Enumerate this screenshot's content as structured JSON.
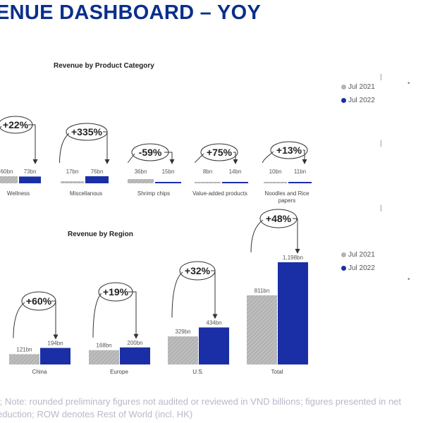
{
  "page": {
    "title": "ENUE DASHBOARD – YOY",
    "footnote_lines": [
      "t; Note: rounded preliminary figures not audited or reviewed in VND billions; figures presented in net",
      "eduction; ROW denotes Rest of World (incl. HK)"
    ]
  },
  "colors": {
    "jul2021": "#b3b3b3",
    "jul2022": "#1a2fa6",
    "title": "#0a2f8c"
  },
  "legend": [
    {
      "label": "Jul 2021",
      "color": "#b3b3b3"
    },
    {
      "label": "Jul 2022",
      "color": "#1a2fa6"
    }
  ],
  "chart_data": [
    {
      "type": "bar",
      "title": "Revenue by Product Category",
      "categories": [
        "Wellness",
        "Miscellanous",
        "Shrimp chips",
        "Value-added products",
        "Noodles and Rice papers"
      ],
      "series": [
        {
          "name": "Jul 2021",
          "values": [
            60,
            17,
            36,
            8,
            10
          ],
          "labels": [
            "60bn",
            "17bn",
            "36bn",
            "8bn",
            "10bn"
          ]
        },
        {
          "name": "Jul 2022",
          "values": [
            73,
            76,
            15,
            14,
            11
          ],
          "labels": [
            "73bn",
            "76bn",
            "15bn",
            "14bn",
            "11bn"
          ]
        }
      ],
      "changes": [
        "+22%",
        "+335%",
        "-59%",
        "+75%",
        "+13%"
      ]
    },
    {
      "type": "bar",
      "title": "Revenue by Region",
      "categories": [
        "China",
        "Europe",
        "U.S.",
        "Total"
      ],
      "series": [
        {
          "name": "Jul 2021",
          "values": [
            121,
            168,
            329,
            811
          ],
          "labels": [
            "121bn",
            "168bn",
            "329bn",
            "811bn"
          ]
        },
        {
          "name": "Jul 2022",
          "values": [
            194,
            200,
            434,
            1198
          ],
          "labels": [
            "194bn",
            "200bn",
            "434bn",
            "1,198bn"
          ]
        }
      ],
      "changes": [
        "+60%",
        "+19%",
        "+32%",
        "+48%"
      ]
    }
  ]
}
